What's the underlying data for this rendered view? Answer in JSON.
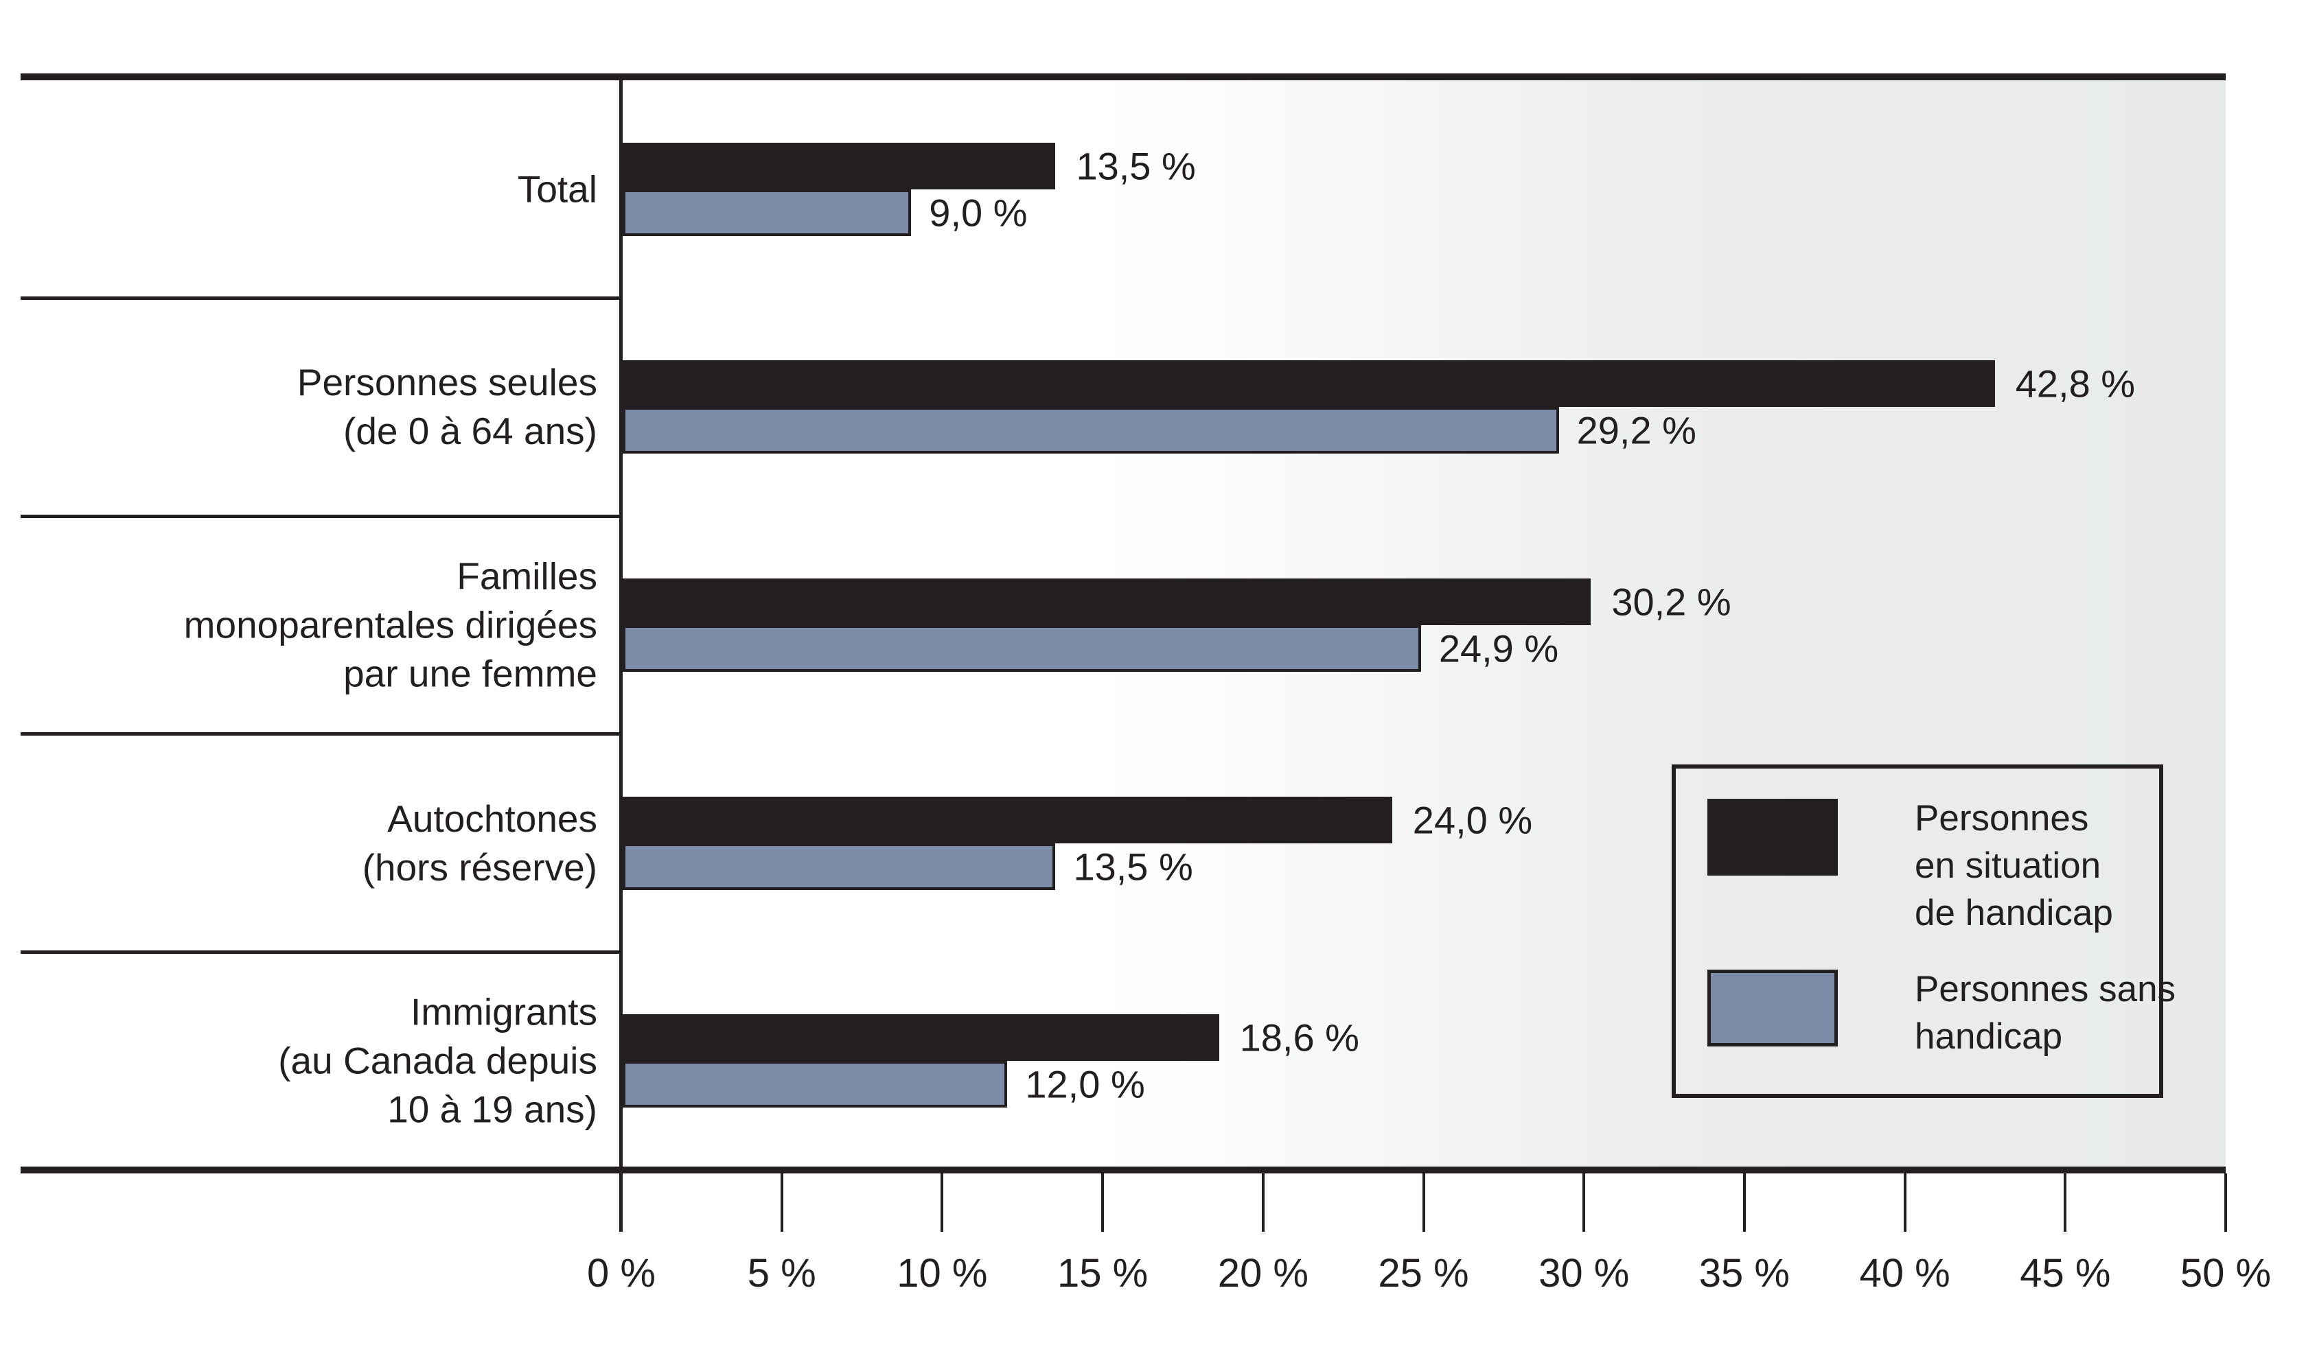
{
  "chart_data": {
    "type": "bar",
    "orientation": "horizontal",
    "x_axis": {
      "min": 0,
      "max": 50,
      "step": 5,
      "tick_labels": [
        "0 %",
        "5 %",
        "10 %",
        "15 %",
        "20 %",
        "25 %",
        "30 %",
        "35 %",
        "40 %",
        "45 %",
        "50 %"
      ]
    },
    "series_meta": [
      {
        "name": "Personnes en situation de handicap",
        "color": "#231f20",
        "legend_lines": [
          "Personnes",
          "en situation",
          "de handicap"
        ]
      },
      {
        "name": "Personnes sans handicap",
        "color": "#7b8ba8",
        "legend_lines": [
          "Personnes sans",
          "handicap"
        ]
      }
    ],
    "rows": [
      {
        "category_lines": [
          "Total"
        ],
        "s0": {
          "value": 13.5,
          "label": "13,5 %"
        },
        "s1": {
          "value": 9.0,
          "label": "9,0 %"
        }
      },
      {
        "category_lines": [
          "Personnes seules",
          "(de 0 à 64 ans)"
        ],
        "s0": {
          "value": 42.8,
          "label": "42,8 %"
        },
        "s1": {
          "value": 29.2,
          "label": "29,2 %"
        }
      },
      {
        "category_lines": [
          "Familles",
          "monoparentales dirigées",
          "par une femme"
        ],
        "s0": {
          "value": 30.2,
          "label": "30,2 %"
        },
        "s1": {
          "value": 24.9,
          "label": "24,9 %"
        }
      },
      {
        "category_lines": [
          "Autochtones",
          "(hors réserve)"
        ],
        "s0": {
          "value": 24.0,
          "label": "24,0 %"
        },
        "s1": {
          "value": 13.5,
          "label": "13,5 %"
        }
      },
      {
        "category_lines": [
          "Immigrants",
          "(au Canada depuis",
          "10 à 19 ans)"
        ],
        "s0": {
          "value": 18.6,
          "label": "18,6 %"
        },
        "s1": {
          "value": 12.0,
          "label": "12,0 %"
        }
      }
    ],
    "colors": {
      "bar_with_disability": "#231f20",
      "bar_without_disability": "#7b8ba8",
      "plot_background_right": "#e8ebe9",
      "line": "#231f20"
    },
    "legend_position": "right-middle",
    "grid": false
  }
}
